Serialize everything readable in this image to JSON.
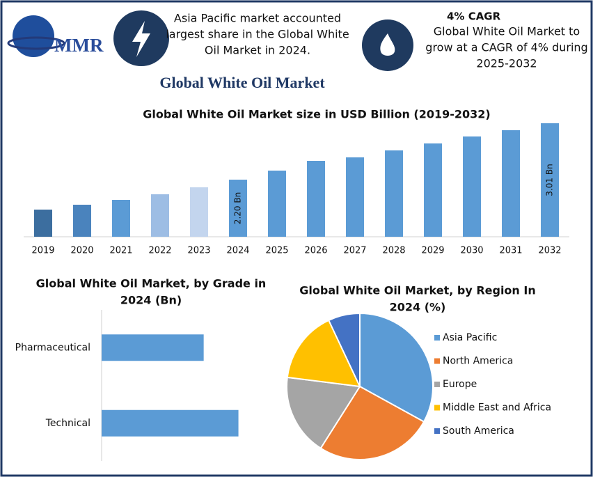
{
  "header": {
    "logo": "MMR",
    "note": [
      "Asia Pacific market accounted",
      "largest share in the Global White",
      "Oil Market in 2024."
    ],
    "cagr_title": "4% CAGR",
    "cagr_text": [
      "Global White Oil Market to",
      "grow at a CAGR of 4% during",
      "2025-2032"
    ],
    "title": "Global White Oil Market"
  },
  "chart_data": [
    {
      "type": "bar",
      "title": [
        "Global White Oil Market size in USD Billion (2019-2032)"
      ],
      "categories": [
        "2019",
        "2020",
        "2021",
        "2022",
        "2023",
        "2024",
        "2025",
        "2026",
        "2027",
        "2028",
        "2029",
        "2030",
        "2031",
        "2032"
      ],
      "values": [
        1.77,
        1.84,
        1.91,
        1.99,
        2.09,
        2.2,
        2.33,
        2.47,
        2.52,
        2.62,
        2.72,
        2.82,
        2.91,
        3.01
      ],
      "value_labels": [
        null,
        null,
        null,
        null,
        null,
        "2.20 Bn",
        null,
        null,
        null,
        null,
        null,
        null,
        null,
        "3.01 Bn"
      ],
      "colors": [
        "#3c6e9f",
        "#4a83bd",
        "#5b9bd5",
        "#9dbde4",
        "#c3d5ee",
        "#5b9bd5",
        "#5b9bd5",
        "#5b9bd5",
        "#5b9bd5",
        "#5b9bd5",
        "#5b9bd5",
        "#5b9bd5",
        "#5b9bd5",
        "#5b9bd5"
      ],
      "ylim": [
        1.38,
        3.1
      ]
    },
    {
      "type": "hbar",
      "title": [
        "Global White Oil Market, by Grade in",
        "2024 (Bn)"
      ],
      "categories": [
        "Pharmaceutical",
        "Technical"
      ],
      "values": [
        0.94,
        1.26
      ],
      "color": "#5b9bd5",
      "xlim": [
        0,
        1.5
      ]
    },
    {
      "type": "pie",
      "title": [
        "Global White Oil Market, by Region In",
        "2024 (%)"
      ],
      "categories": [
        "Asia Pacific",
        "North America",
        "Europe",
        "Middle East and Africa",
        "South America"
      ],
      "values": [
        33,
        26,
        18,
        16,
        7
      ],
      "colors": [
        "#5b9bd5",
        "#ed7d31",
        "#a5a5a5",
        "#ffc000",
        "#4472c4"
      ],
      "legend": "right"
    }
  ]
}
